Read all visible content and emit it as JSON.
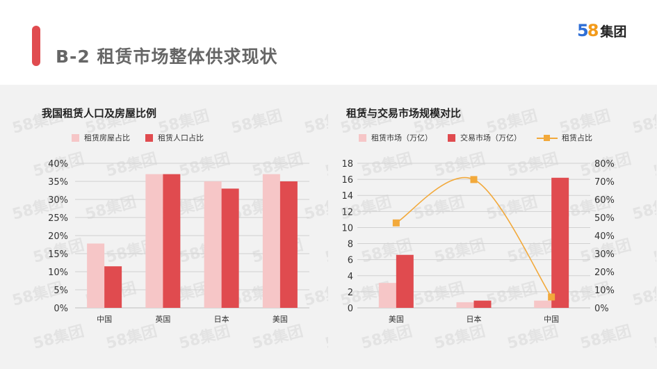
{
  "header": {
    "title": "B-2 租赁市场整体供求现状",
    "logo_num_5": "5",
    "logo_num_8": "8",
    "logo_text": "集团"
  },
  "colors": {
    "accent": "#e04b4f",
    "light_bar": "#f6c6c7",
    "dark_bar": "#e04b4f",
    "line": "#f2a93b"
  },
  "left_chart": {
    "title": "我国租赁人口及房屋比例",
    "legend": [
      "租赁房屋占比",
      "租赁人口占比"
    ]
  },
  "right_chart": {
    "title": "租赁与交易市场规模对比",
    "legend": [
      "租赁市场（万亿）",
      "交易市场（万亿）",
      "租赁占比"
    ]
  },
  "watermark_text": "58集团",
  "chart_data": [
    {
      "type": "bar",
      "title": "我国租赁人口及房屋比例",
      "categories": [
        "中国",
        "英国",
        "日本",
        "美国"
      ],
      "series": [
        {
          "name": "租赁房屋占比",
          "values": [
            17.8,
            37,
            35,
            37
          ]
        },
        {
          "name": "租赁人口占比",
          "values": [
            11.5,
            37,
            33,
            35
          ]
        }
      ],
      "yticks": [
        "0%",
        "5%",
        "10%",
        "15%",
        "20%",
        "25%",
        "30%",
        "35%",
        "40%"
      ],
      "ylim": [
        0,
        40
      ],
      "grid": true,
      "legend_position": "top"
    },
    {
      "type": "bar",
      "title": "租赁与交易市场规模对比",
      "categories": [
        "美国",
        "日本",
        "中国"
      ],
      "series": [
        {
          "name": "租赁市场（万亿）",
          "values": [
            3.1,
            0.7,
            0.9
          ],
          "axis": "left"
        },
        {
          "name": "交易市场（万亿）",
          "values": [
            6.6,
            0.9,
            16.2
          ],
          "axis": "left"
        },
        {
          "name": "租赁占比",
          "type": "line",
          "values": [
            47,
            71,
            6
          ],
          "axis": "right"
        }
      ],
      "yticks_left": [
        "0",
        "2",
        "4",
        "6",
        "8",
        "10",
        "12",
        "14",
        "16",
        "18"
      ],
      "yticks_right": [
        "0%",
        "10%",
        "20%",
        "30%",
        "40%",
        "50%",
        "60%",
        "70%",
        "80%"
      ],
      "ylim_left": [
        0,
        18
      ],
      "ylim_right": [
        0,
        80
      ],
      "grid": true,
      "legend_position": "top"
    }
  ]
}
